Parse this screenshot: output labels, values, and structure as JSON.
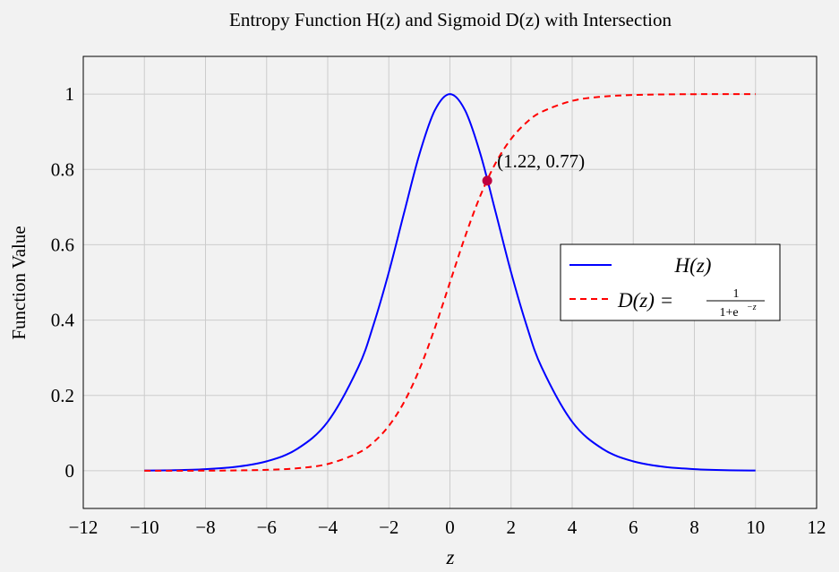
{
  "chart_data": {
    "type": "line",
    "title": "Entropy Function H(z) and Sigmoid D(z) with Intersection",
    "xlabel": "z",
    "ylabel": "Function Value",
    "xlim": [
      -12,
      12
    ],
    "ylim": [
      -0.1,
      1.1
    ],
    "xticks": [
      -12,
      -10,
      -8,
      -6,
      -4,
      -2,
      0,
      2,
      4,
      6,
      8,
      10,
      12
    ],
    "yticks": [
      0,
      0.2,
      0.4,
      0.6,
      0.8,
      1
    ],
    "xtick_labels": [
      "−12",
      "−10",
      "−8",
      "−6",
      "−4",
      "−2",
      "0",
      "2",
      "4",
      "6",
      "8",
      "10",
      "12"
    ],
    "ytick_labels": [
      "0",
      "0.2",
      "0.4",
      "0.6",
      "0.8",
      "1"
    ],
    "grid": true,
    "legend_position": "right",
    "series": [
      {
        "name": "H(z)",
        "color": "#0000ff",
        "style": "solid",
        "x": [
          -10,
          -9,
          -8,
          -7,
          -6,
          -5,
          -4,
          -3,
          -2.5,
          -2,
          -1.5,
          -1,
          -0.5,
          0,
          0.5,
          1,
          1.5,
          2,
          2.5,
          3,
          4,
          5,
          6,
          7,
          8,
          9,
          10
        ],
        "y": [
          0.0007,
          0.0016,
          0.0044,
          0.0105,
          0.025,
          0.058,
          0.13,
          0.275,
          0.388,
          0.527,
          0.685,
          0.84,
          0.956,
          1.0,
          0.956,
          0.84,
          0.685,
          0.527,
          0.388,
          0.275,
          0.13,
          0.058,
          0.025,
          0.0105,
          0.0044,
          0.0016,
          0.0007
        ]
      },
      {
        "name": "D(z) = 1/(1+e^(−z))",
        "color": "#ff0000",
        "style": "dashed",
        "x": [
          -10,
          -9,
          -8,
          -7,
          -6,
          -5,
          -4,
          -3,
          -2.5,
          -2,
          -1.5,
          -1,
          -0.5,
          0,
          0.5,
          1,
          1.5,
          2,
          2.5,
          3,
          4,
          5,
          6,
          7,
          8,
          9,
          10
        ],
        "y": [
          5e-05,
          0.00012,
          0.00034,
          0.00091,
          0.0025,
          0.0067,
          0.018,
          0.0474,
          0.0759,
          0.1192,
          0.1824,
          0.2689,
          0.3775,
          0.5,
          0.6225,
          0.7311,
          0.8176,
          0.8808,
          0.9241,
          0.9526,
          0.982,
          0.9933,
          0.9975,
          0.9991,
          0.9997,
          0.9999,
          1.0
        ]
      }
    ],
    "annotations": [
      {
        "x": 1.22,
        "y": 0.77,
        "label": "(1.22, 0.77)",
        "color": "#bf0040"
      }
    ],
    "legend": {
      "h_label": "H(z)",
      "d_label_lhs": "D(z) =",
      "d_num": "1",
      "d_den": "1+e",
      "d_den_exp": "−z"
    }
  }
}
